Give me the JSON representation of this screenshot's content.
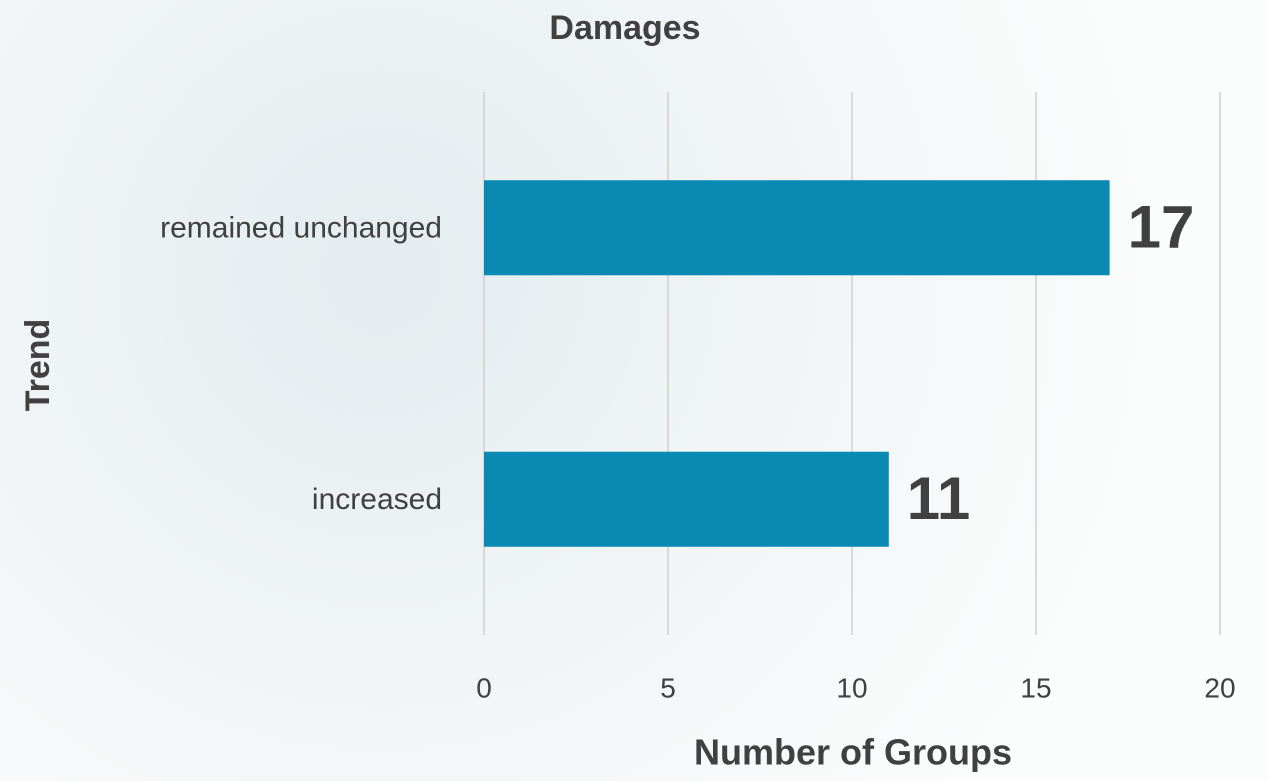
{
  "chart_data": {
    "type": "bar",
    "orientation": "horizontal",
    "title": "Damages",
    "xlabel": "Number of Groups",
    "ylabel": "Trend",
    "categories": [
      "remained unchanged",
      "increased"
    ],
    "values": [
      17,
      11
    ],
    "color": "#0a89b3",
    "xlim": [
      0,
      20
    ],
    "xticks": [
      0,
      5,
      10,
      15,
      20
    ],
    "grid": true
  }
}
